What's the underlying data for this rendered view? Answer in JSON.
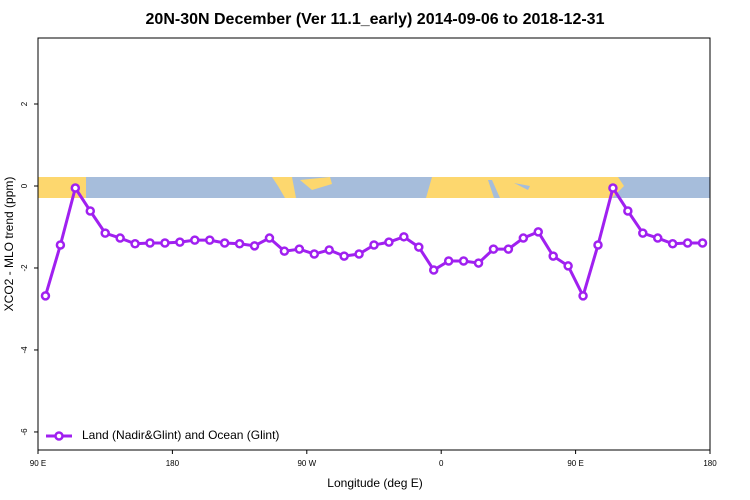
{
  "chart_data": {
    "type": "line",
    "title": "20N-30N December (Ver 11.1_early)   2014-09-06 to 2018-12-31",
    "x_label": "Longitude (deg E)",
    "y_label": "XCO2 - MLO trend (ppm)",
    "xlim": [
      90,
      540
    ],
    "ylim": [
      -6.44,
      3.61
    ],
    "xticks": [
      {
        "value": 90,
        "label": "90 E"
      },
      {
        "value": 180,
        "label": "180"
      },
      {
        "value": 270,
        "label": "90 W"
      },
      {
        "value": 360,
        "label": "0"
      },
      {
        "value": 450,
        "label": "90 E"
      },
      {
        "value": 540,
        "label": "180"
      }
    ],
    "yticks": [
      2,
      0,
      -2,
      -4,
      -6
    ],
    "legend": "bottom-left",
    "series": [
      {
        "name": "Land (Nadir&Glint) and Ocean (Glint)",
        "color": "#a020f0",
        "x": [
          95,
          105,
          115,
          125,
          135,
          145,
          155,
          165,
          175,
          185,
          195,
          205,
          215,
          225,
          235,
          245,
          255,
          265,
          275,
          285,
          295,
          305,
          315,
          325,
          335,
          345,
          355,
          365,
          375,
          385,
          395,
          405,
          415,
          425,
          435,
          445,
          455,
          465,
          475,
          485,
          495,
          505,
          515,
          525,
          535
        ],
        "values": [
          -2.68,
          -1.44,
          -0.05,
          -0.61,
          -1.15,
          -1.27,
          -1.41,
          -1.39,
          -1.39,
          -1.37,
          -1.32,
          -1.32,
          -1.39,
          -1.41,
          -1.46,
          -1.27,
          -1.59,
          -1.54,
          -1.66,
          -1.56,
          -1.71,
          -1.66,
          -1.44,
          -1.37,
          -1.24,
          -1.49,
          -2.05,
          -1.83,
          -1.83,
          -1.88,
          -1.54,
          -1.54,
          -1.27,
          -1.12,
          -1.71,
          -1.95,
          -2.68,
          -1.44,
          -0.05,
          -0.61,
          -1.15,
          -1.27,
          -1.41,
          -1.39,
          -1.39
        ]
      }
    ]
  }
}
